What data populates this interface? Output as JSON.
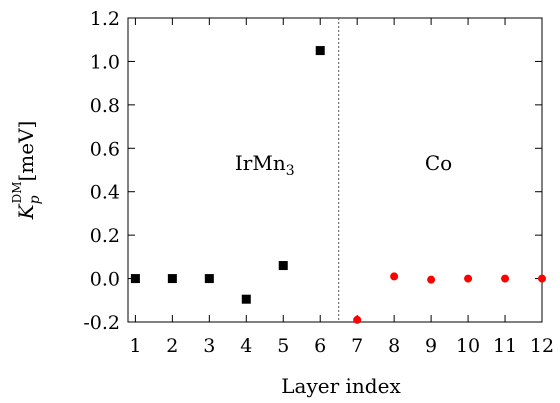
{
  "chart_data": {
    "type": "scatter",
    "xlabel": "Layer index",
    "ylabel": {
      "main": "K",
      "sub": "p",
      "sup": "DM",
      "unit": "[meV]"
    },
    "xlim": [
      0.8,
      12
    ],
    "ylim": [
      -0.2,
      1.2
    ],
    "x_ticks": [
      "1",
      "2",
      "3",
      "4",
      "5",
      "6",
      "7",
      "8",
      "9",
      "10",
      "11",
      "12"
    ],
    "y_ticks": [
      "-0.2",
      "0.0",
      "0.2",
      "0.4",
      "0.6",
      "0.8",
      "1.0",
      "1.2"
    ],
    "divider_x": 6.5,
    "regions": {
      "left": {
        "base": "IrMn",
        "sub": "3",
        "x": 4.5,
        "y": 0.5
      },
      "right": {
        "text": "Co",
        "x": 9.2,
        "y": 0.5
      }
    },
    "series": [
      {
        "marker": "square",
        "color": "#000000",
        "points": [
          [
            1,
            0.0
          ],
          [
            2,
            0.0
          ],
          [
            3,
            0.0
          ],
          [
            4,
            -0.095
          ],
          [
            5,
            0.06
          ],
          [
            6,
            1.05
          ]
        ]
      },
      {
        "marker": "circle",
        "color": "#ff0000",
        "points": [
          [
            7,
            -0.19
          ],
          [
            8,
            0.01
          ],
          [
            9,
            -0.005
          ],
          [
            10,
            0.0
          ],
          [
            11,
            0.0
          ],
          [
            12,
            0.0
          ]
        ]
      }
    ]
  }
}
